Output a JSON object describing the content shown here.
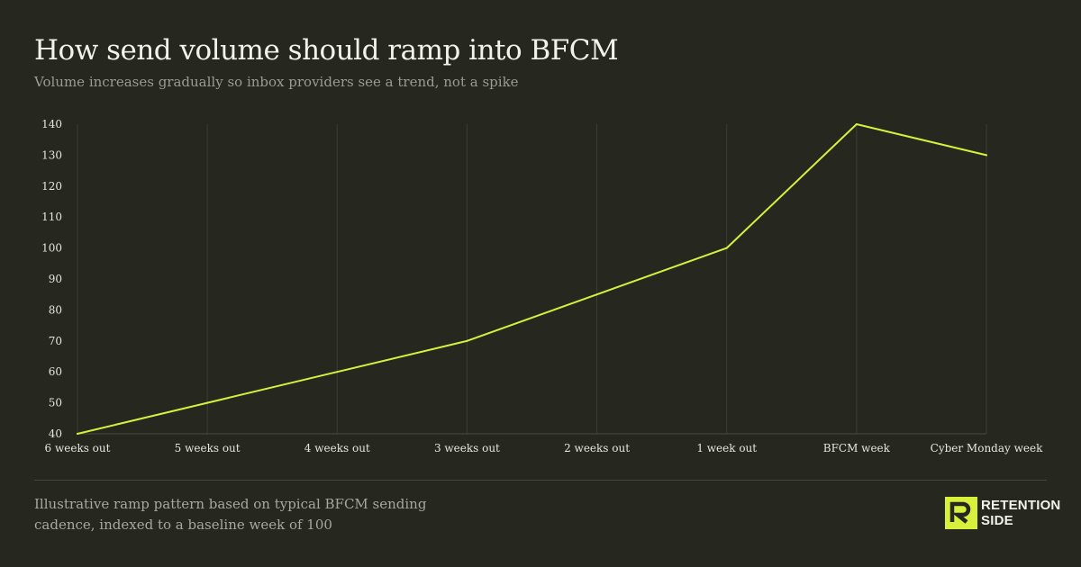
{
  "header": {
    "title": "How send volume should ramp into BFCM",
    "subtitle": "Volume increases gradually so inbox providers see a trend, not a spike"
  },
  "footer": {
    "note": "Illustrative ramp pattern based on typical BFCM sending cadence, indexed to a baseline week of 100"
  },
  "brand": {
    "line1": "RETENTION",
    "line2": "SIDE",
    "accent": "#d7f03c"
  },
  "colors": {
    "background": "#262820",
    "line": "#d7f03c",
    "grid": "#3b3e34",
    "axis_text": "#e6e6de"
  },
  "chart_data": {
    "type": "line",
    "title": "How send volume should ramp into BFCM",
    "subtitle": "Volume increases gradually so inbox providers see a trend, not a spike",
    "xlabel": "",
    "ylabel": "",
    "categories": [
      "6 weeks out",
      "5 weeks out",
      "4 weeks out",
      "3 weeks out",
      "2 weeks out",
      "1 week out",
      "BFCM week",
      "Cyber Monday week"
    ],
    "series": [
      {
        "values": [
          40,
          50,
          60,
          70,
          85,
          100,
          140,
          130
        ]
      }
    ],
    "ylim": [
      40,
      140
    ],
    "yticks": [
      40,
      50,
      60,
      70,
      80,
      90,
      100,
      110,
      120,
      130,
      140
    ],
    "grid": "vertical",
    "legend": "none"
  }
}
